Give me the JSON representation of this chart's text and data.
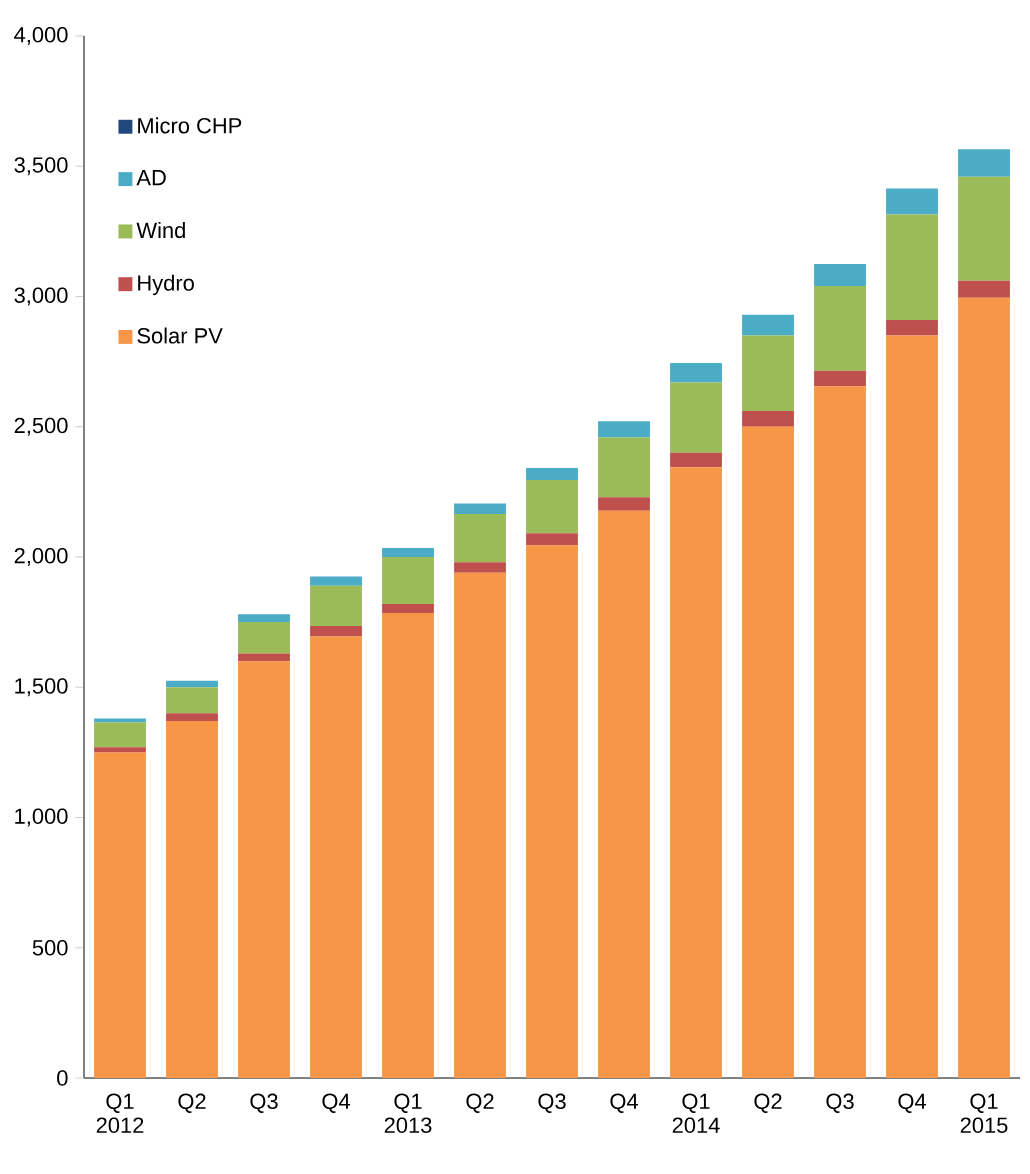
{
  "chart_data": {
    "type": "bar",
    "stacked": true,
    "categories": [
      "Q1 2012",
      "Q2",
      "Q3",
      "Q4",
      "Q1 2013",
      "Q2",
      "Q3",
      "Q4",
      "Q1 2014",
      "Q2",
      "Q3",
      "Q4",
      "Q1 2015"
    ],
    "series": [
      {
        "name": "Solar PV",
        "color": "#f79646",
        "values": [
          1250,
          1370,
          1600,
          1695,
          1785,
          1940,
          2045,
          2178,
          2345,
          2500,
          2655,
          2850,
          2995
        ]
      },
      {
        "name": "Hydro",
        "color": "#c0504d",
        "values": [
          20,
          30,
          30,
          40,
          35,
          40,
          46,
          51,
          55,
          60,
          60,
          60,
          65
        ]
      },
      {
        "name": "Wind",
        "color": "#9bbb59",
        "values": [
          95,
          100,
          120,
          155,
          180,
          185,
          205,
          230,
          270,
          290,
          325,
          405,
          400
        ]
      },
      {
        "name": "AD",
        "color": "#4bacc6",
        "values": [
          15,
          25,
          30,
          35,
          35,
          40,
          46,
          62,
          75,
          80,
          85,
          100,
          105
        ]
      },
      {
        "name": "Micro CHP",
        "color": "#1f497d",
        "values": [
          null,
          null,
          null,
          null,
          null,
          null,
          null,
          null,
          null,
          null,
          null,
          null,
          null
        ]
      }
    ],
    "ylim": [
      0,
      4000
    ],
    "yticks": [
      {
        "value": 0,
        "label": "0"
      },
      {
        "value": 500,
        "label": "500"
      },
      {
        "value": 1000,
        "label": "1,000"
      },
      {
        "value": 1500,
        "label": "1,500"
      },
      {
        "value": 2000,
        "label": "2,000"
      },
      {
        "value": 2500,
        "label": "2,500"
      },
      {
        "value": 3000,
        "label": "3,000"
      },
      {
        "value": 3500,
        "label": "3,500"
      },
      {
        "value": 4000,
        "label": "4,000"
      }
    ],
    "grid": false,
    "legend": "top left"
  }
}
